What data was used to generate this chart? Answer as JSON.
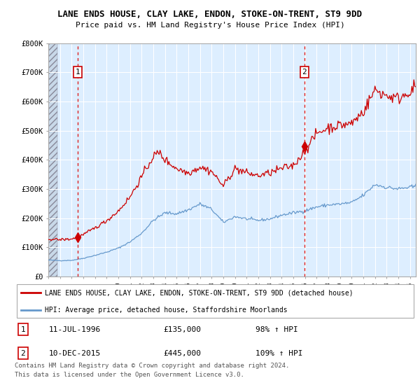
{
  "title": "LANE ENDS HOUSE, CLAY LAKE, ENDON, STOKE-ON-TRENT, ST9 9DD",
  "subtitle": "Price paid vs. HM Land Registry's House Price Index (HPI)",
  "legend_line1": "LANE ENDS HOUSE, CLAY LAKE, ENDON, STOKE-ON-TRENT, ST9 9DD (detached house)",
  "legend_line2": "HPI: Average price, detached house, Staffordshire Moorlands",
  "annotation1_label": "1",
  "annotation1_date": "11-JUL-1996",
  "annotation1_price": "£135,000",
  "annotation1_hpi": "98% ↑ HPI",
  "annotation1_year": 1996.54,
  "annotation1_value": 135000,
  "annotation2_label": "2",
  "annotation2_date": "10-DEC-2015",
  "annotation2_price": "£445,000",
  "annotation2_hpi": "109% ↑ HPI",
  "annotation2_year": 2015.94,
  "annotation2_value": 445000,
  "footer1": "Contains HM Land Registry data © Crown copyright and database right 2024.",
  "footer2": "This data is licensed under the Open Government Licence v3.0.",
  "hpi_color": "#6699cc",
  "price_color": "#cc0000",
  "hatch_bg_color": "#d8e4f0",
  "plot_bg_color": "#ddeeff",
  "ylim": [
    0,
    800000
  ],
  "yticks": [
    0,
    100000,
    200000,
    300000,
    400000,
    500000,
    600000,
    700000,
    800000
  ],
  "ytick_labels": [
    "£0",
    "£100K",
    "£200K",
    "£300K",
    "£400K",
    "£500K",
    "£600K",
    "£700K",
    "£800K"
  ],
  "xmin": 1994.0,
  "xmax": 2025.5,
  "hatch_xmax": 1994.75
}
